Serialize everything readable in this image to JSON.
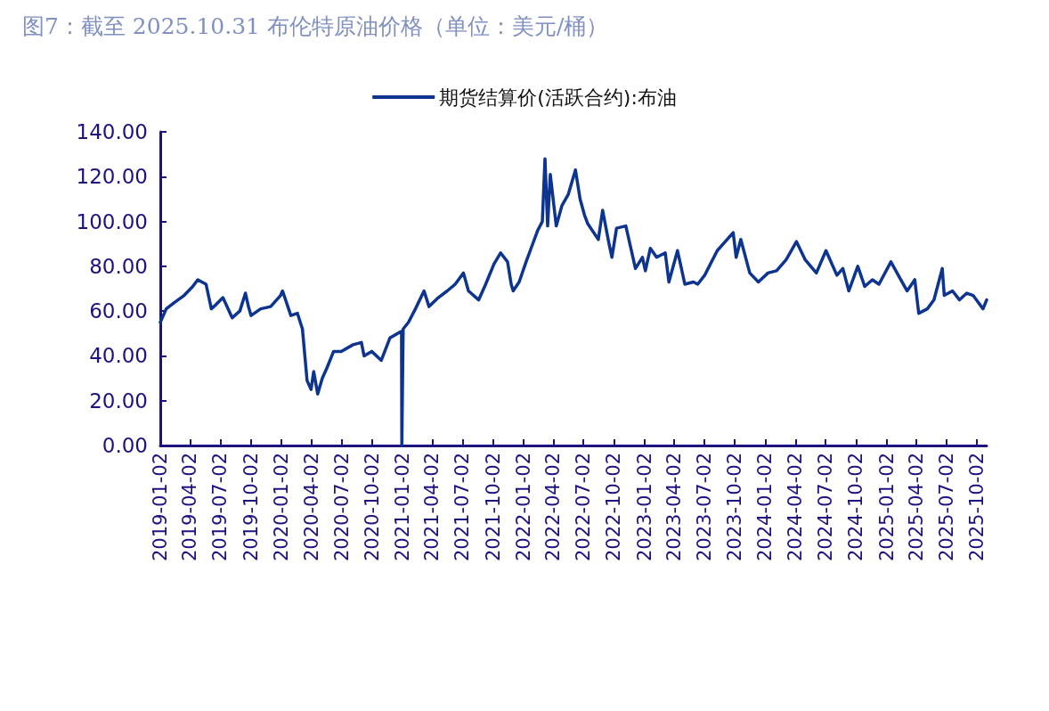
{
  "chart_data": {
    "type": "line",
    "title": "图7：截至 2025.10.31 布伦特原油价格（单位：美元/桶）",
    "legend": "top",
    "marker": "none",
    "line_style": "solid",
    "grid": false,
    "xlim": [
      "2019-01-02",
      "2025-10-31"
    ],
    "xticks": [
      "2019-01-02",
      "2019-04-02",
      "2019-07-02",
      "2019-10-02",
      "2020-01-02",
      "2020-04-02",
      "2020-07-02",
      "2020-10-02",
      "2021-01-02",
      "2021-04-02",
      "2021-07-02",
      "2021-10-02",
      "2022-01-02",
      "2022-04-02",
      "2022-07-02",
      "2022-10-02",
      "2023-01-02",
      "2023-04-02",
      "2023-07-02",
      "2023-10-02",
      "2024-01-02",
      "2024-04-02",
      "2024-07-02",
      "2024-10-02",
      "2025-01-02",
      "2025-04-02",
      "2025-07-02",
      "2025-10-02"
    ],
    "ylim": [
      0,
      140
    ],
    "yticks": [
      {
        "value": 0,
        "label": "0.00"
      },
      {
        "value": 20,
        "label": "20.00"
      },
      {
        "value": 40,
        "label": "40.00"
      },
      {
        "value": 60,
        "label": "60.00"
      },
      {
        "value": 80,
        "label": "80.00"
      },
      {
        "value": 100,
        "label": "100.00"
      },
      {
        "value": 120,
        "label": "120.00"
      },
      {
        "value": 140,
        "label": "140.00"
      }
    ],
    "x": [
      "2019-01-02",
      "2019-01-20",
      "2019-02-15",
      "2019-03-15",
      "2019-04-10",
      "2019-04-25",
      "2019-05-20",
      "2019-06-05",
      "2019-06-20",
      "2019-07-10",
      "2019-08-07",
      "2019-08-30",
      "2019-09-16",
      "2019-09-25",
      "2019-10-03",
      "2019-11-01",
      "2019-12-01",
      "2019-12-31",
      "2020-01-06",
      "2020-01-31",
      "2020-02-20",
      "2020-03-06",
      "2020-03-20",
      "2020-04-01",
      "2020-04-09",
      "2020-04-21",
      "2020-05-05",
      "2020-05-20",
      "2020-06-08",
      "2020-07-01",
      "2020-08-06",
      "2020-08-31",
      "2020-09-08",
      "2020-10-01",
      "2020-10-30",
      "2020-11-25",
      "2020-12-30",
      "2020-12-31",
      "2021-01-04",
      "2021-01-20",
      "2021-02-10",
      "2021-03-08",
      "2021-03-23",
      "2021-04-20",
      "2021-05-17",
      "2021-06-10",
      "2021-07-05",
      "2021-07-20",
      "2021-08-20",
      "2021-09-10",
      "2021-10-05",
      "2021-10-25",
      "2021-11-15",
      "2021-11-26",
      "2021-12-02",
      "2021-12-20",
      "2022-01-10",
      "2022-01-25",
      "2022-02-14",
      "2022-02-28",
      "2022-03-08",
      "2022-03-16",
      "2022-03-24",
      "2022-04-11",
      "2022-04-28",
      "2022-05-17",
      "2022-06-08",
      "2022-06-22",
      "2022-07-05",
      "2022-07-15",
      "2022-08-16",
      "2022-08-29",
      "2022-09-16",
      "2022-09-26",
      "2022-10-10",
      "2022-11-07",
      "2022-12-06",
      "2022-12-27",
      "2023-01-05",
      "2023-01-20",
      "2023-02-08",
      "2023-03-06",
      "2023-03-17",
      "2023-04-12",
      "2023-05-04",
      "2023-05-30",
      "2023-06-12",
      "2023-07-03",
      "2023-08-10",
      "2023-09-27",
      "2023-10-06",
      "2023-10-20",
      "2023-11-16",
      "2023-12-12",
      "2024-01-10",
      "2024-02-05",
      "2024-03-05",
      "2024-04-05",
      "2024-05-01",
      "2024-06-04",
      "2024-07-03",
      "2024-08-05",
      "2024-08-23",
      "2024-09-10",
      "2024-10-07",
      "2024-10-28",
      "2024-11-20",
      "2024-12-10",
      "2025-01-15",
      "2025-02-10",
      "2025-03-05",
      "2025-03-28",
      "2025-04-09",
      "2025-05-05",
      "2025-05-25",
      "2025-06-19",
      "2025-06-25",
      "2025-07-20",
      "2025-08-10",
      "2025-09-01",
      "2025-09-20",
      "2025-10-20",
      "2025-10-31"
    ],
    "series": [
      {
        "name": "期货结算价(活跃合约):布油",
        "color": "#0d348f",
        "values": [
          55,
          61,
          64,
          67,
          71,
          74,
          72,
          61,
          63,
          66,
          57,
          60,
          68,
          62,
          58,
          61,
          62,
          67,
          69,
          58,
          59,
          52,
          29,
          25,
          33,
          23,
          30,
          35,
          42,
          42,
          45,
          46,
          40,
          42,
          38,
          48,
          51,
          0,
          52,
          55,
          61,
          69,
          62,
          66,
          69,
          72,
          77,
          69,
          65,
          72,
          81,
          86,
          82,
          72,
          69,
          73,
          82,
          88,
          96,
          100,
          128,
          98,
          121,
          98,
          107,
          112,
          123,
          110,
          103,
          99,
          92,
          105,
          91,
          84,
          97,
          98,
          79,
          84,
          78,
          88,
          84,
          86,
          73,
          87,
          72,
          73,
          72,
          76,
          87,
          95,
          84,
          92,
          77,
          73,
          77,
          78,
          83,
          91,
          83,
          77,
          87,
          76,
          79,
          69,
          80,
          71,
          74,
          72,
          82,
          75,
          69,
          74,
          59,
          61,
          65,
          79,
          67,
          69,
          65,
          68,
          67,
          61,
          65
        ]
      }
    ]
  }
}
